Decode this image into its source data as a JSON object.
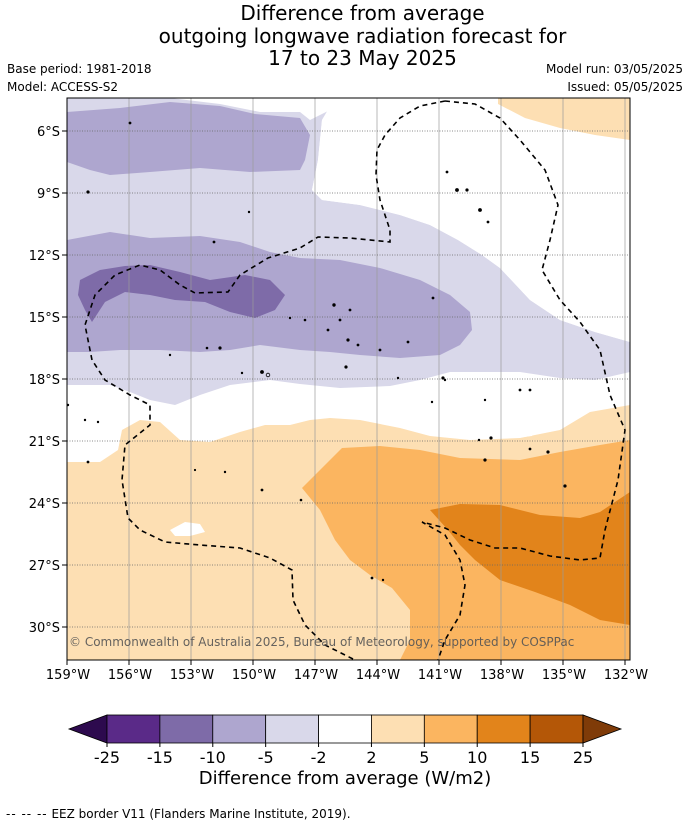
{
  "title": {
    "line1": "Difference from average",
    "line2": "outgoing longwave radiation forecast for",
    "line3": "17 to 23 May 2025"
  },
  "meta": {
    "base_period": "Base period: 1981-2018",
    "model": "Model: ACCESS-S2",
    "model_run": "Model run: 03/05/2025",
    "issued": "Issued: 05/05/2025"
  },
  "map": {
    "lon_labels": [
      "159°W",
      "156°W",
      "153°W",
      "150°W",
      "147°W",
      "144°W",
      "141°W",
      "138°W",
      "135°W",
      "132°W"
    ],
    "lat_labels": [
      "6°S",
      "9°S",
      "12°S",
      "15°S",
      "18°S",
      "21°S",
      "24°S",
      "27°S",
      "30°S"
    ],
    "copyright": "© Commonwealth of Australia 2025, Bureau of Meteorology, supported by COSPPac"
  },
  "colorbar": {
    "ticks": [
      "-25",
      "-15",
      "-10",
      "-5",
      "-2",
      "2",
      "5",
      "10",
      "15",
      "25"
    ],
    "label": "Difference from average (W/m2)",
    "colors": [
      "#2d0a4e",
      "#5a2a88",
      "#7e6ba8",
      "#aea6cf",
      "#d9d8ea",
      "#ffffff",
      "#fddfb3",
      "#fbb560",
      "#e2841b",
      "#b45707",
      "#7f3b08"
    ]
  },
  "footer": {
    "dashes": "-- -- --",
    "eez": "EEZ border V11 (Flanders Marine Institute, 2019)."
  }
}
